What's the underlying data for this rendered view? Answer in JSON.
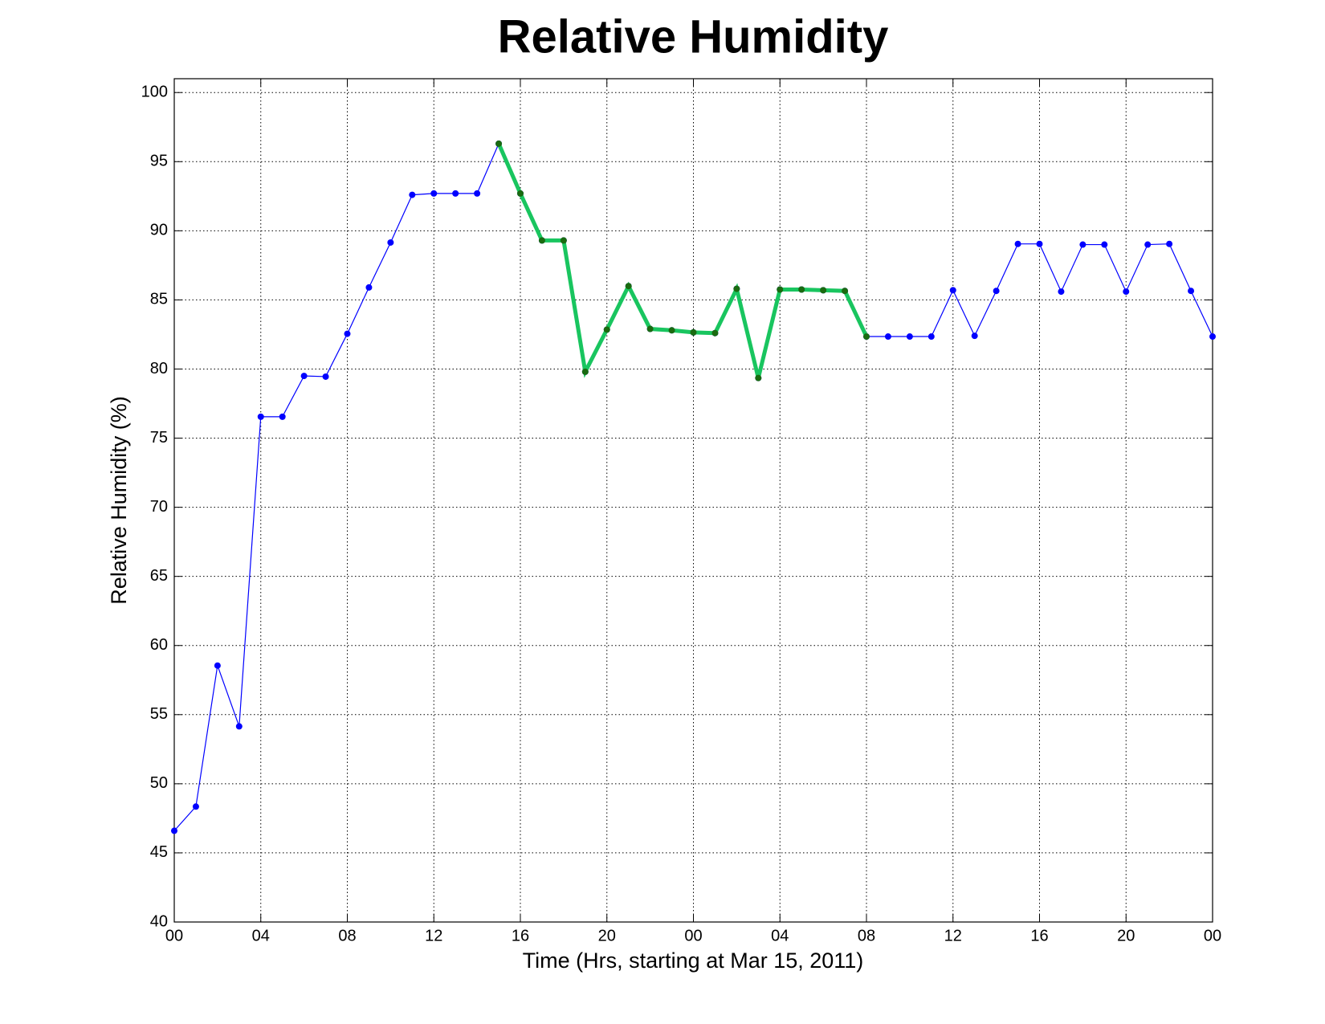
{
  "chart_data": {
    "type": "line",
    "title": "Relative Humidity",
    "x_label": "Time (Hrs, starting at Mar 15, 2011)",
    "y_label": "Relative Humidity (%)",
    "x": [
      0,
      1,
      2,
      3,
      4,
      5,
      6,
      7,
      8,
      9,
      10,
      11,
      12,
      13,
      14,
      15,
      16,
      17,
      18,
      19,
      20,
      21,
      22,
      23,
      24,
      25,
      26,
      27,
      28,
      29,
      30,
      31,
      32,
      33,
      34,
      35,
      36,
      37,
      38,
      39,
      40,
      41,
      42,
      43,
      44,
      45,
      46,
      47,
      48
    ],
    "series": [
      {
        "color": "#0000ff",
        "marker_color": "#0000ff",
        "line_width": 1.2,
        "values": [
          46.6,
          48.35,
          58.55,
          54.15,
          76.55,
          76.55,
          79.5,
          79.45,
          82.55,
          85.9,
          89.15,
          92.6,
          92.7,
          92.7,
          92.7,
          96.3,
          92.7,
          89.3,
          89.3,
          79.8,
          82.85,
          86.0,
          82.9,
          82.8,
          82.65,
          82.6,
          85.8,
          79.35,
          85.75,
          85.75,
          85.7,
          85.65,
          82.35,
          82.35,
          82.35,
          82.35,
          85.7,
          82.4,
          85.65,
          89.05,
          89.05,
          85.6,
          89.0,
          89.0,
          85.6,
          89.0,
          89.05,
          85.65,
          82.35
        ]
      },
      {
        "color": "#19c55f",
        "marker_color": "#1a6b10",
        "line_width": 5,
        "values": [
          null,
          null,
          null,
          null,
          null,
          null,
          null,
          null,
          null,
          null,
          null,
          null,
          null,
          null,
          null,
          96.3,
          92.7,
          89.3,
          89.3,
          79.8,
          82.85,
          86.0,
          82.9,
          82.8,
          82.65,
          82.6,
          85.8,
          79.35,
          85.75,
          85.75,
          85.7,
          85.65,
          82.35,
          null,
          null,
          null,
          null,
          null,
          null,
          null,
          null,
          null,
          null,
          null,
          null,
          null,
          null,
          null,
          null
        ]
      }
    ],
    "xlim": [
      0,
      48
    ],
    "xticks": [
      {
        "value": 0,
        "label": "00"
      },
      {
        "value": 4,
        "label": "04"
      },
      {
        "value": 8,
        "label": "08"
      },
      {
        "value": 12,
        "label": "12"
      },
      {
        "value": 16,
        "label": "16"
      },
      {
        "value": 20,
        "label": "20"
      },
      {
        "value": 24,
        "label": "00"
      },
      {
        "value": 28,
        "label": "04"
      },
      {
        "value": 32,
        "label": "08"
      },
      {
        "value": 36,
        "label": "12"
      },
      {
        "value": 40,
        "label": "16"
      },
      {
        "value": 44,
        "label": "20"
      },
      {
        "value": 48,
        "label": "00"
      }
    ],
    "ylim": [
      40,
      101
    ],
    "yticks": [
      40,
      45,
      50,
      55,
      60,
      65,
      70,
      75,
      80,
      85,
      90,
      95,
      100
    ],
    "grid": true
  }
}
